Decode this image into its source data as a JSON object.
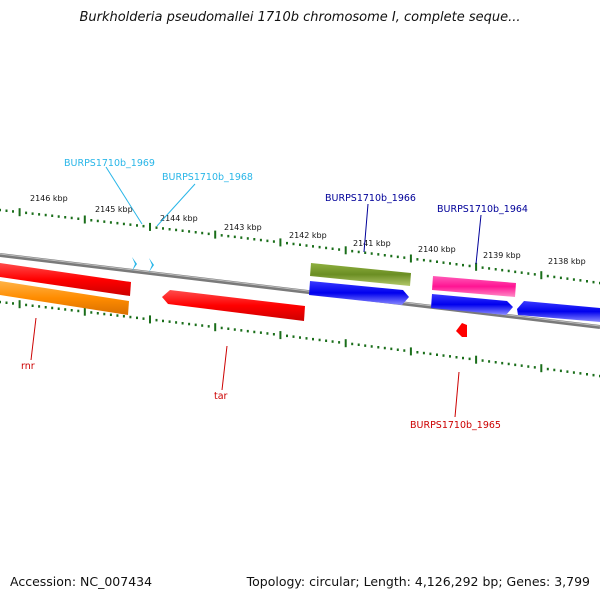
{
  "title": "Burkholderia pseudomallei 1710b chromosome I, complete seque...",
  "accession": "Accession: NC_007434",
  "topology": "Topology: circular; Length: 4,126,292 bp; Genes: 3,799",
  "colors": {
    "backbone": "#888888",
    "ticks": "#1a6e1a",
    "red": "#ff0000",
    "orange": "#ff8c00",
    "olive": "#6b8e23",
    "blue": "#0000ee",
    "pink": "#ff1493",
    "cyan": "#29b6e8",
    "label_cyan": "#29b6e8",
    "label_blue": "#000099",
    "label_red": "#cc0000"
  },
  "scale_labels": [
    "2146 kbp",
    "2145 kbp",
    "2144 kbp",
    "2143 kbp",
    "2142 kbp",
    "2141 kbp",
    "2140 kbp",
    "2139 kbp",
    "2138 kbp"
  ],
  "features": [
    {
      "name": "rnr",
      "color": "red",
      "strand": "forward"
    },
    {
      "name": "rnr-orange",
      "color": "orange",
      "strand": "reverse"
    },
    {
      "name": "BURPS1710b_1969",
      "color": "cyan",
      "strand": "forward"
    },
    {
      "name": "BURPS1710b_1968",
      "color": "cyan",
      "strand": "forward"
    },
    {
      "name": "tar",
      "color": "red",
      "strand": "reverse"
    },
    {
      "name": "BURPS1710b_1966",
      "color": "olive",
      "strand": "forward"
    },
    {
      "name": "BURPS1710b_1966-blue",
      "color": "blue",
      "strand": "reverse"
    },
    {
      "name": "BURPS1710b_1964",
      "color": "pink",
      "strand": "forward"
    },
    {
      "name": "BURPS1710b_1964-blue",
      "color": "blue",
      "strand": "reverse"
    },
    {
      "name": "BURPS1710b_1965",
      "color": "red",
      "strand": "reverse"
    },
    {
      "name": "right-blue",
      "color": "blue",
      "strand": "reverse"
    }
  ],
  "labels": {
    "BURPS1710b_1969": "BURPS1710b_1969",
    "BURPS1710b_1968": "BURPS1710b_1968",
    "BURPS1710b_1966": "BURPS1710b_1966",
    "BURPS1710b_1964": "BURPS1710b_1964",
    "BURPS1710b_1965": "BURPS1710b_1965",
    "rnr": "rnr",
    "tar": "tar"
  }
}
